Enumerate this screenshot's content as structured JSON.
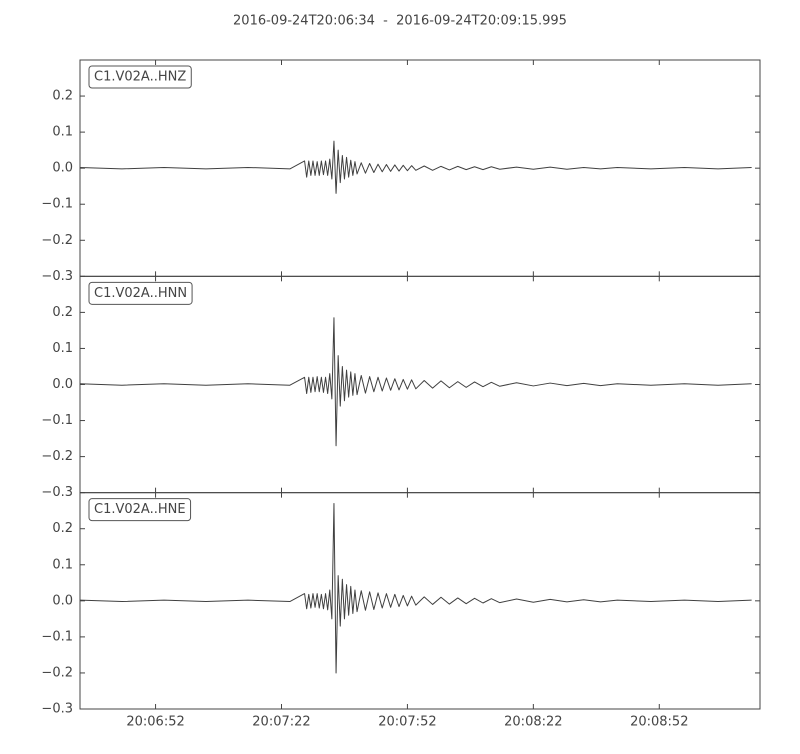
{
  "chart_data": {
    "type": "line",
    "title": "2016-09-24T20:06:34  -  2016-09-24T20:09:15.995",
    "xlim": [
      0,
      161.995
    ],
    "xticks": [
      {
        "value": 18,
        "label": "20:06:52"
      },
      {
        "value": 48,
        "label": "20:07:22"
      },
      {
        "value": 78,
        "label": "20:07:52"
      },
      {
        "value": 108,
        "label": "20:08:22"
      },
      {
        "value": 138,
        "label": "20:08:52"
      }
    ],
    "x": [
      0,
      10,
      20,
      30,
      40,
      50,
      53.5,
      54,
      54.5,
      55,
      55.5,
      56,
      56.5,
      57,
      57.5,
      58,
      58.5,
      59,
      59.5,
      60,
      60.5,
      61,
      61.5,
      62,
      62.5,
      63,
      63.5,
      64,
      64.5,
      65,
      65.5,
      66,
      67,
      68,
      69,
      70,
      71,
      72,
      73,
      74,
      75,
      76,
      77,
      78,
      79,
      80,
      82,
      84,
      86,
      88,
      90,
      92,
      94,
      96,
      98,
      100,
      104,
      108,
      112,
      116,
      120,
      124,
      128,
      136,
      144,
      152,
      160
    ],
    "panels": [
      {
        "label": "C1.V02A..HNZ",
        "color": "#404040",
        "ylim": [
          -0.3,
          0.3
        ],
        "yticks": [
          {
            "value": -0.3,
            "label": "−0.3"
          },
          {
            "value": -0.2,
            "label": "−0.2"
          },
          {
            "value": -0.1,
            "label": "−0.1"
          },
          {
            "value": 0,
            "label": "0.0"
          },
          0.1,
          0.2
        ],
        "values": [
          0.002,
          -0.002,
          0.002,
          -0.002,
          0.002,
          -0.002,
          0.02,
          -0.025,
          0.02,
          -0.02,
          0.02,
          -0.02,
          0.018,
          -0.02,
          0.02,
          -0.018,
          0.02,
          -0.02,
          0.025,
          -0.03,
          0.075,
          -0.07,
          0.05,
          -0.04,
          0.035,
          -0.03,
          0.03,
          -0.025,
          0.022,
          -0.02,
          0.018,
          -0.016,
          0.015,
          -0.014,
          0.013,
          -0.012,
          0.011,
          -0.01,
          0.01,
          -0.009,
          0.009,
          -0.008,
          0.008,
          -0.007,
          0.007,
          -0.006,
          0.006,
          -0.006,
          0.005,
          -0.005,
          0.005,
          -0.004,
          0.004,
          -0.004,
          0.004,
          -0.003,
          0.003,
          -0.003,
          0.003,
          -0.003,
          0.002,
          -0.002,
          0.002,
          -0.002,
          0.002,
          -0.002,
          0.002
        ]
      },
      {
        "label": "C1.V02A..HNN",
        "color": "#404040",
        "ylim": [
          -0.3,
          0.3
        ],
        "yticks": [
          {
            "value": -0.3,
            "label": "−0.3"
          },
          {
            "value": -0.2,
            "label": "−0.2"
          },
          {
            "value": -0.1,
            "label": "−0.1"
          },
          {
            "value": 0,
            "label": "0.0"
          },
          0.1,
          0.2
        ],
        "values": [
          0.002,
          -0.002,
          0.002,
          -0.002,
          0.002,
          -0.002,
          0.02,
          -0.025,
          0.02,
          -0.022,
          0.02,
          -0.02,
          0.022,
          -0.02,
          0.02,
          -0.022,
          0.02,
          -0.025,
          0.03,
          -0.04,
          0.185,
          -0.17,
          0.08,
          -0.06,
          0.05,
          -0.045,
          0.04,
          -0.035,
          0.035,
          -0.03,
          0.03,
          -0.028,
          0.025,
          -0.024,
          0.022,
          -0.02,
          0.02,
          -0.018,
          0.018,
          -0.016,
          0.016,
          -0.015,
          0.014,
          -0.013,
          0.013,
          -0.012,
          0.011,
          -0.01,
          0.01,
          -0.009,
          0.008,
          -0.008,
          0.007,
          -0.006,
          0.006,
          -0.005,
          0.005,
          -0.004,
          0.004,
          -0.003,
          0.003,
          -0.003,
          0.002,
          -0.002,
          0.002,
          -0.002,
          0.002
        ]
      },
      {
        "label": "C1.V02A..HNE",
        "color": "#404040",
        "ylim": [
          -0.3,
          0.3
        ],
        "yticks": [
          {
            "value": -0.3,
            "label": "−0.3"
          },
          {
            "value": -0.2,
            "label": "−0.2"
          },
          {
            "value": -0.1,
            "label": "−0.1"
          },
          {
            "value": 0,
            "label": "0.0"
          },
          0.1,
          0.2
        ],
        "values": [
          0.002,
          -0.002,
          0.002,
          -0.002,
          0.002,
          -0.002,
          0.02,
          -0.022,
          0.018,
          -0.02,
          0.02,
          -0.018,
          0.02,
          -0.02,
          0.018,
          -0.022,
          0.02,
          -0.025,
          0.03,
          -0.05,
          0.27,
          -0.2,
          0.07,
          -0.07,
          0.06,
          -0.05,
          0.045,
          -0.04,
          0.04,
          -0.035,
          0.03,
          -0.03,
          0.028,
          -0.026,
          0.025,
          -0.024,
          0.022,
          -0.02,
          0.02,
          -0.018,
          0.018,
          -0.016,
          0.015,
          -0.014,
          0.013,
          -0.012,
          0.011,
          -0.01,
          0.01,
          -0.009,
          0.008,
          -0.008,
          0.007,
          -0.006,
          0.006,
          -0.005,
          0.005,
          -0.004,
          0.004,
          -0.003,
          0.003,
          -0.003,
          0.002,
          -0.002,
          0.002,
          -0.002,
          0.002
        ]
      }
    ]
  }
}
